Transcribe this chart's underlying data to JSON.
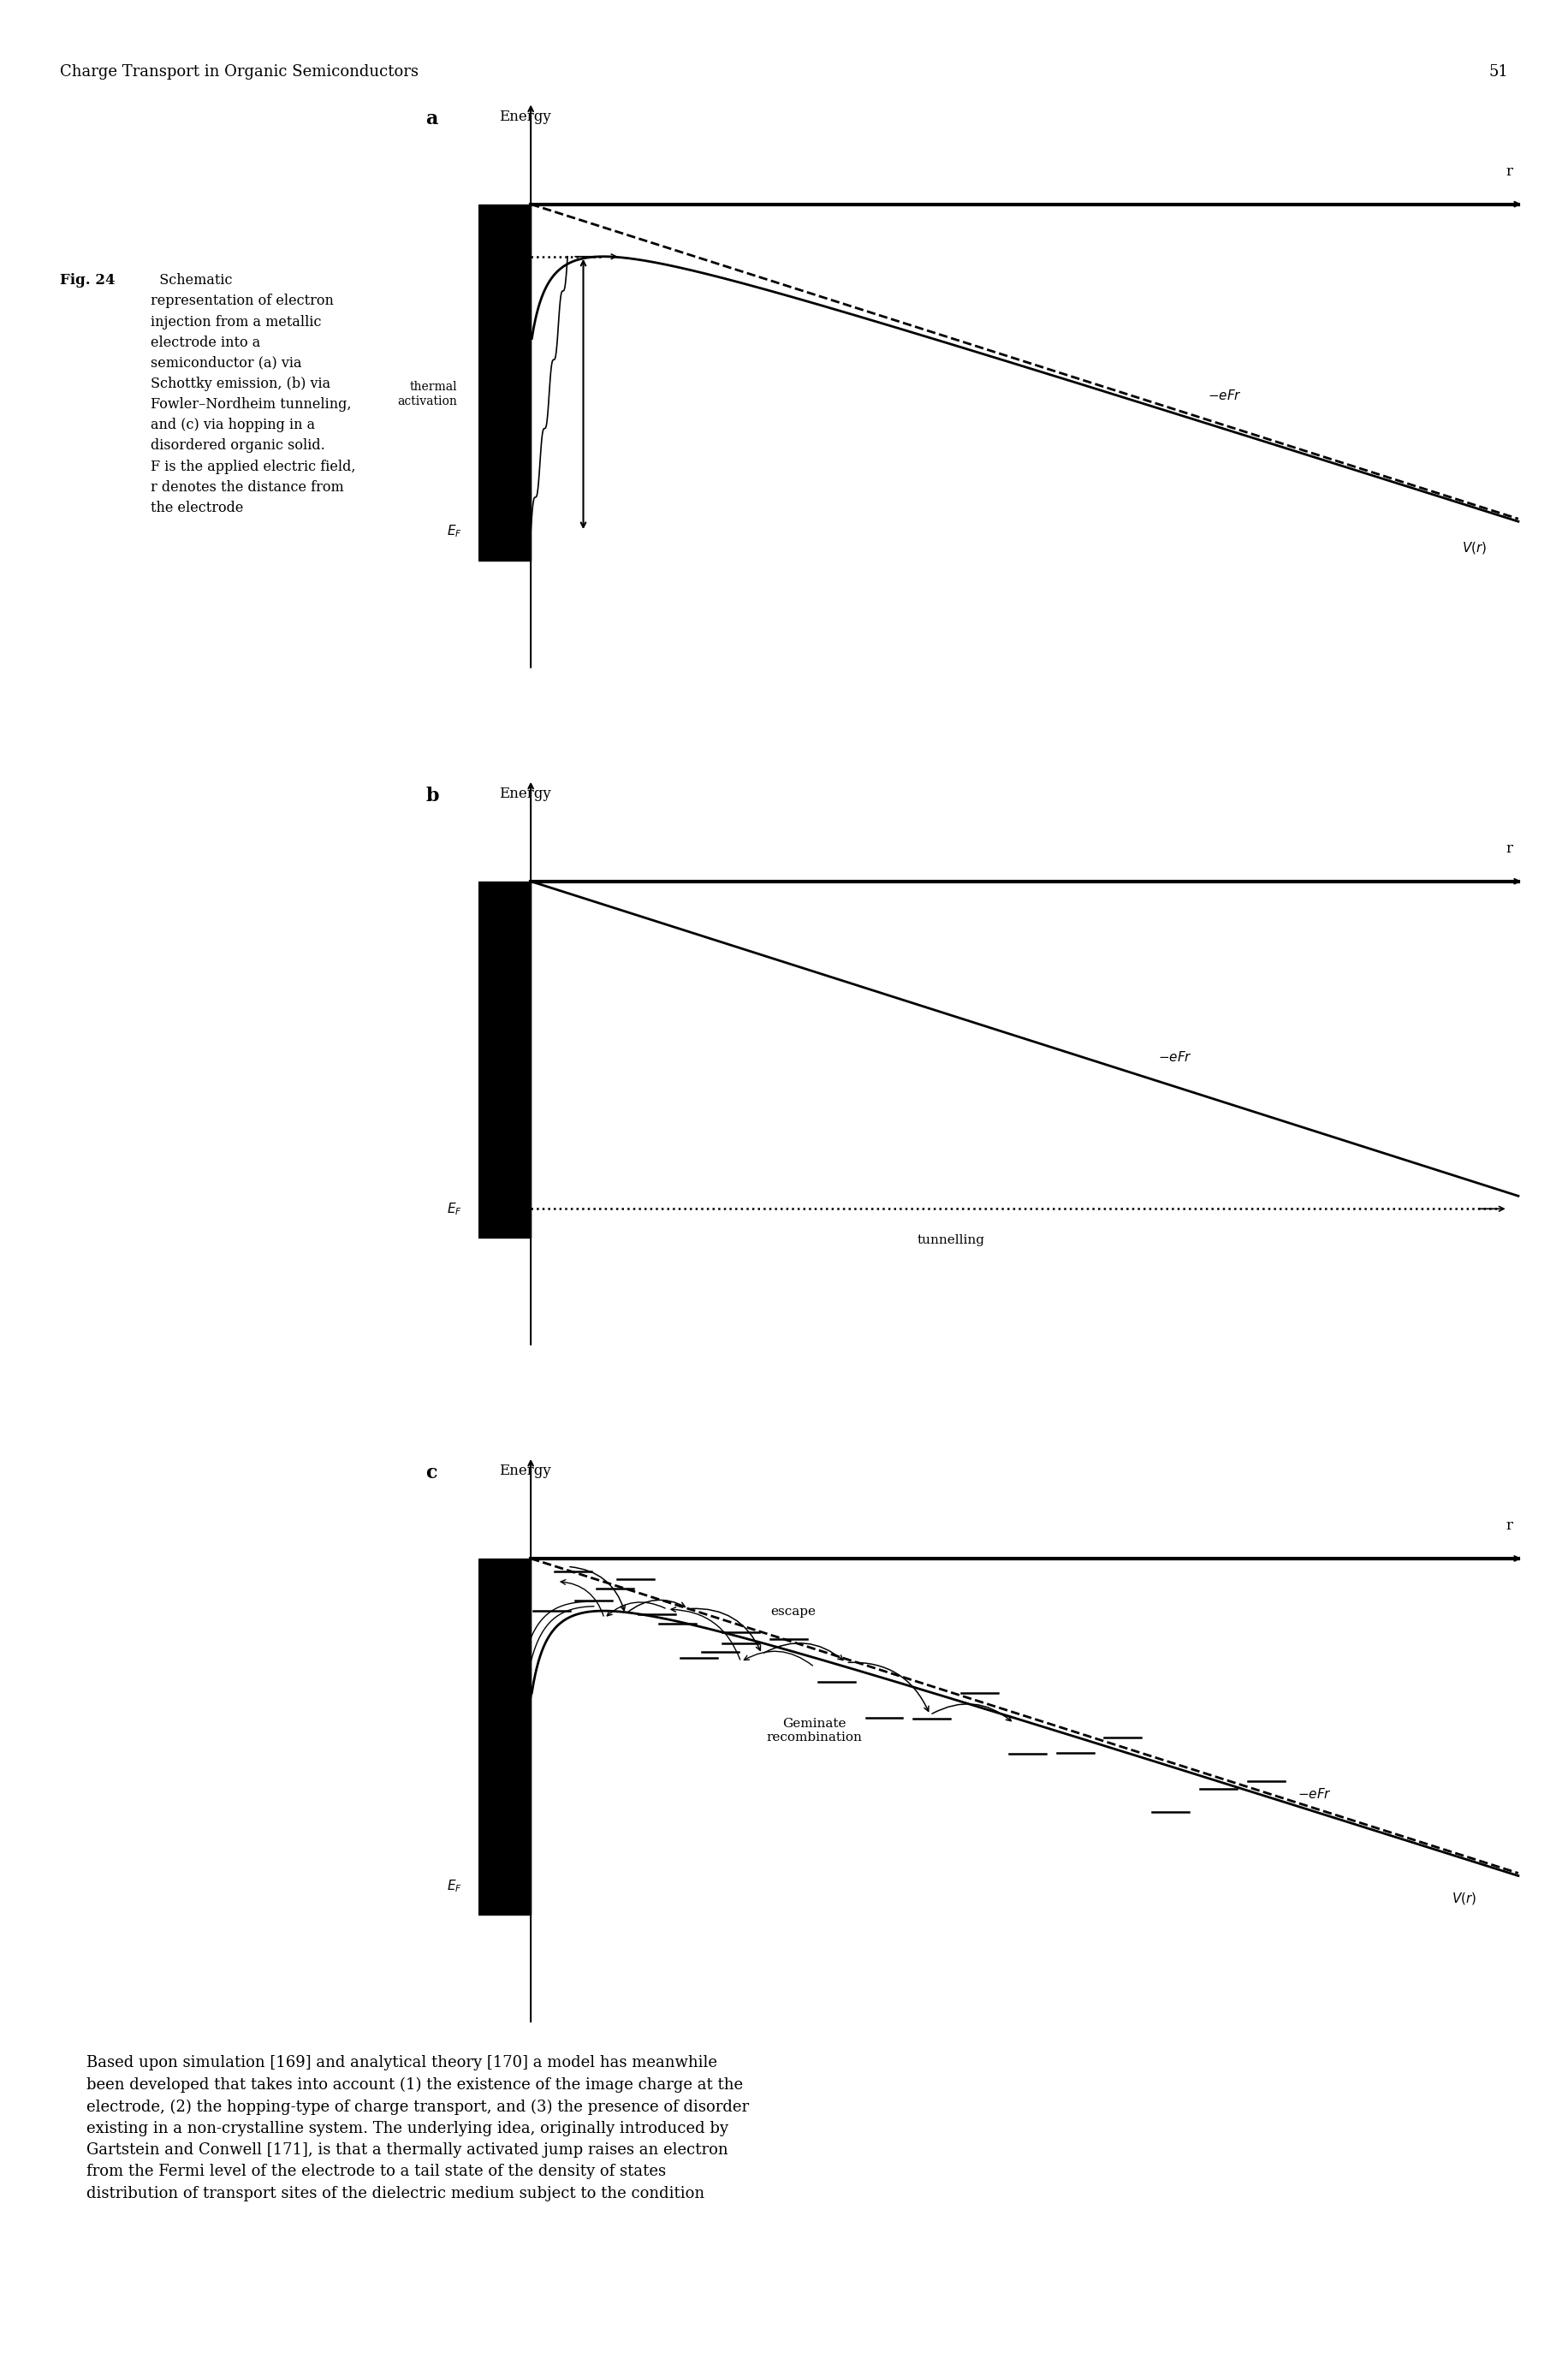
{
  "header_text": "Charge Transport in Organic Semiconductors",
  "page_number": "51",
  "panel_a_label": "a",
  "panel_b_label": "b",
  "panel_c_label": "c",
  "background_color": "#ffffff",
  "fig_caption_bold": "Fig. 24",
  "fig_caption_normal": "  Schematic\nrepresentation of electron\ninjection from a metallic\nelectrode into a\nsemiconductor (a) via\nSchottky emission, (b) via\nFowler–Nordheim tunneling,\nand (c) via hopping in a\ndisordered organic solid.\nF is the applied electric field,\nr denotes the distance from\nthe electrode",
  "body_text_line1": "Based upon simulation [169] and analytical theory [170] a model has meanwhile",
  "body_text_line2": "been developed that takes into account (1) the existence of the image charge at the",
  "body_text_line3": "electrode, (2) the hopping-type of charge transport, and (3) the presence of disorder",
  "body_text_line4": "existing in a non-crystalline system. The underlying idea, originally introduced by",
  "body_text_line5": "Gartstein and Conwell [171], is that a thermally activated jump raises an electron",
  "body_text_line6": "from the Fermi level of the electrode to a tail state of the density of states",
  "body_text_line7": "distribution of transport sites of the dielectric medium subject to the condition"
}
